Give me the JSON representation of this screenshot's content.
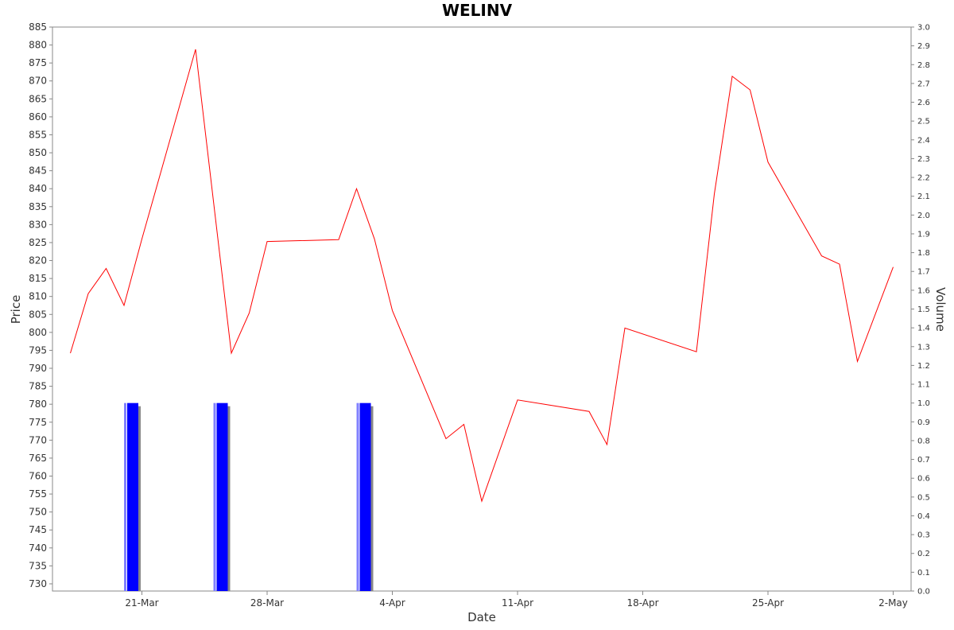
{
  "chart_data": {
    "type": "line",
    "title": "WELINV",
    "xlabel": "Date",
    "ylabel": "Price",
    "y2label": "Volume",
    "ylim": [
      728,
      885
    ],
    "y2lim": [
      0,
      3.0
    ],
    "yticks": [
      730,
      735,
      740,
      745,
      750,
      755,
      760,
      765,
      770,
      775,
      780,
      785,
      790,
      795,
      800,
      805,
      810,
      815,
      820,
      825,
      830,
      835,
      840,
      845,
      850,
      855,
      860,
      865,
      870,
      875,
      880,
      885
    ],
    "y2ticks": [
      "0.0",
      "0.1",
      "0.2",
      "0.3",
      "0.4",
      "0.5",
      "0.6",
      "0.7",
      "0.8",
      "0.9",
      "1.0",
      "1.1",
      "1.2",
      "1.3",
      "1.4",
      "1.5",
      "1.6",
      "1.7",
      "1.8",
      "1.9",
      "2.0",
      "2.1",
      "2.2",
      "2.3",
      "2.4",
      "2.5",
      "2.6",
      "2.7",
      "2.8",
      "2.9",
      "3.0"
    ],
    "xlim": [
      "2016-03-16",
      "2016-05-03"
    ],
    "xticks": [
      {
        "date": "2016-03-21",
        "label": "21-Mar"
      },
      {
        "date": "2016-03-28",
        "label": "28-Mar"
      },
      {
        "date": "2016-04-04",
        "label": "4-Apr"
      },
      {
        "date": "2016-04-11",
        "label": "11-Apr"
      },
      {
        "date": "2016-04-18",
        "label": "18-Apr"
      },
      {
        "date": "2016-04-25",
        "label": "25-Apr"
      },
      {
        "date": "2016-05-02",
        "label": "2-May"
      }
    ],
    "grid": false,
    "legend": "none",
    "series": [
      {
        "type": "line",
        "color": "#ff0000",
        "points": [
          {
            "x": "2016-03-17",
            "y": 794.2
          },
          {
            "x": "2016-03-18",
            "y": 810.8
          },
          {
            "x": "2016-03-19",
            "y": 817.8
          },
          {
            "x": "2016-03-20",
            "y": 807.5
          },
          {
            "x": "2016-03-21",
            "y": 826.0
          },
          {
            "x": "2016-03-24",
            "y": 878.8
          },
          {
            "x": "2016-03-26",
            "y": 794.2
          },
          {
            "x": "2016-03-27",
            "y": 805.4
          },
          {
            "x": "2016-03-28",
            "y": 825.3
          },
          {
            "x": "2016-04-01",
            "y": 825.8
          },
          {
            "x": "2016-04-02",
            "y": 840.0
          },
          {
            "x": "2016-04-03",
            "y": 826.0
          },
          {
            "x": "2016-04-04",
            "y": 806.1
          },
          {
            "x": "2016-04-07",
            "y": 770.4
          },
          {
            "x": "2016-04-08",
            "y": 774.4
          },
          {
            "x": "2016-04-09",
            "y": 753.0
          },
          {
            "x": "2016-04-11",
            "y": 781.2
          },
          {
            "x": "2016-04-15",
            "y": 778.0
          },
          {
            "x": "2016-04-16",
            "y": 768.8
          },
          {
            "x": "2016-04-17",
            "y": 801.2
          },
          {
            "x": "2016-04-21",
            "y": 794.6
          },
          {
            "x": "2016-04-22",
            "y": 838.5
          },
          {
            "x": "2016-04-23",
            "y": 871.3
          },
          {
            "x": "2016-04-24",
            "y": 867.5
          },
          {
            "x": "2016-04-25",
            "y": 847.4
          },
          {
            "x": "2016-04-28",
            "y": 821.3
          },
          {
            "x": "2016-04-29",
            "y": 819.0
          },
          {
            "x": "2016-04-30",
            "y": 791.9
          },
          {
            "x": "2016-05-02",
            "y": 818.2
          }
        ]
      },
      {
        "type": "bar",
        "axis": "right",
        "color": "#0000ff",
        "points": [
          {
            "x": "2016-03-20",
            "y": 1.0
          },
          {
            "x": "2016-03-25",
            "y": 1.0
          },
          {
            "x": "2016-04-02",
            "y": 1.0
          }
        ]
      }
    ]
  }
}
